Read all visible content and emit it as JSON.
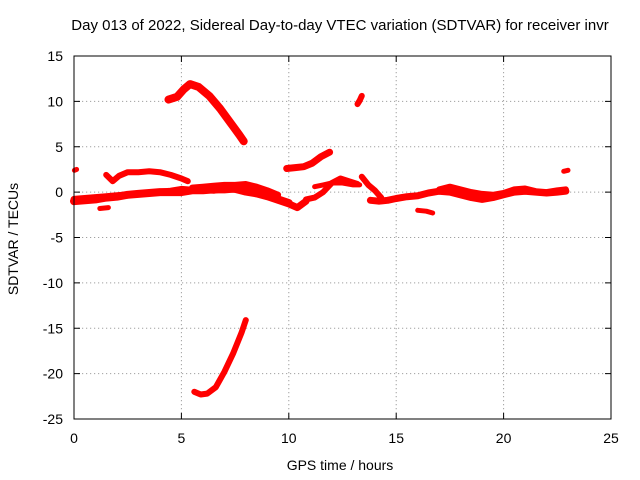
{
  "chart_data": {
    "type": "scatter",
    "title": "Day 013 of 2022, Sidereal Day-to-day VTEC variation (SDTVAR) for receiver invr",
    "xlabel": "GPS time / hours",
    "ylabel": "SDTVAR / TECUs",
    "xlim": [
      0,
      25
    ],
    "ylim": [
      -25,
      15
    ],
    "xticks": [
      0,
      5,
      10,
      15,
      20,
      25
    ],
    "yticks": [
      15,
      10,
      5,
      0,
      -5,
      -10,
      -15,
      -20,
      -25
    ],
    "grid": true,
    "legend": "none",
    "marker_color": "#ff0000",
    "series": [
      {
        "name": "arc-baseline-1",
        "width": 7,
        "x": [
          0.0,
          0.5,
          1.0,
          1.5,
          2.0,
          2.5,
          3.0,
          3.5,
          4.0,
          4.5,
          5.0,
          5.5,
          6.0,
          6.5,
          7.0,
          7.5,
          8.0,
          8.5,
          9.0,
          9.5,
          10.0,
          10.4,
          10.8
        ],
        "y": [
          -0.8,
          -0.7,
          -0.6,
          -0.5,
          -0.4,
          -0.3,
          -0.2,
          -0.1,
          0.0,
          0.1,
          0.3,
          0.2,
          0.3,
          0.2,
          0.4,
          0.3,
          0.0,
          -0.2,
          -0.5,
          -0.9,
          -1.3,
          -1.7,
          -1.0
        ]
      },
      {
        "name": "arc-baseline-2",
        "width": 8,
        "x": [
          0.0,
          0.5,
          1.0,
          1.5,
          2.0,
          2.5,
          3.0,
          3.5,
          4.0,
          4.5,
          5.0,
          5.5,
          6.0,
          6.5,
          7.0,
          7.5,
          8.0,
          8.5,
          9.0,
          9.5,
          10.0
        ],
        "y": [
          -1.0,
          -0.9,
          -0.8,
          -0.6,
          -0.5,
          -0.3,
          -0.2,
          -0.1,
          0.0,
          0.0,
          0.0,
          0.2,
          0.2,
          0.3,
          0.3,
          0.4,
          0.3,
          0.0,
          -0.3,
          -0.8,
          -1.2
        ]
      },
      {
        "name": "arc-upper-2",
        "width": 6,
        "x": [
          1.5,
          1.8,
          2.1,
          2.5,
          3.0,
          3.5,
          4.0,
          4.5,
          5.0,
          5.3
        ],
        "y": [
          1.9,
          1.2,
          1.8,
          2.2,
          2.2,
          2.3,
          2.2,
          1.9,
          1.5,
          1.2
        ]
      },
      {
        "name": "arc-5-8",
        "width": 6,
        "x": [
          5.5,
          6.0,
          6.5,
          7.0,
          7.5,
          8.0,
          8.5,
          9.0,
          9.5
        ],
        "y": [
          0.5,
          0.6,
          0.7,
          0.8,
          0.8,
          0.9,
          0.6,
          0.2,
          -0.3
        ]
      },
      {
        "name": "arc-10-12",
        "width": 6,
        "x": [
          10.8,
          11.2,
          11.6,
          12.0,
          12.4,
          12.8,
          13.2
        ],
        "y": [
          -0.8,
          -0.6,
          0.0,
          1.0,
          1.5,
          1.2,
          0.9
        ]
      },
      {
        "name": "arc-11-13",
        "width": 5,
        "x": [
          11.2,
          11.6,
          12.0,
          12.5,
          13.0,
          13.3
        ],
        "y": [
          0.6,
          0.8,
          1.0,
          1.0,
          0.8,
          0.8
        ]
      },
      {
        "name": "arc-evening",
        "width": 7,
        "x": [
          13.8,
          14.2,
          14.6,
          15.0,
          15.5,
          16.0,
          16.5,
          17.0,
          17.5,
          18.0,
          18.5,
          19.0,
          19.5,
          20.0,
          20.5,
          21.0,
          21.5,
          22.0,
          22.5,
          22.9
        ],
        "y": [
          -0.9,
          -1.0,
          -0.9,
          -0.7,
          -0.5,
          -0.4,
          -0.1,
          0.1,
          0.0,
          -0.3,
          -0.6,
          -0.8,
          -0.6,
          -0.3,
          0.0,
          0.1,
          0.0,
          -0.1,
          0.0,
          0.1
        ]
      },
      {
        "name": "arc-evening-b",
        "width": 6,
        "x": [
          17.0,
          17.5,
          18.0,
          18.5,
          19.0,
          19.5,
          20.0,
          20.5,
          21.0,
          21.5,
          22.0,
          22.5,
          22.9
        ],
        "y": [
          0.3,
          0.6,
          0.3,
          0.0,
          -0.2,
          -0.3,
          -0.1,
          0.3,
          0.4,
          0.1,
          0.0,
          0.2,
          0.3
        ]
      },
      {
        "name": "arc-13-hump",
        "width": 6,
        "x": [
          13.4,
          13.7,
          14.0,
          14.3
        ],
        "y": [
          1.7,
          0.8,
          0.2,
          -0.6
        ]
      },
      {
        "name": "arc-high-5",
        "width": 8,
        "x": [
          4.4,
          4.8,
          5.1,
          5.4,
          5.8,
          6.3,
          6.8,
          7.3,
          7.7,
          7.9
        ],
        "y": [
          10.2,
          10.5,
          11.3,
          11.9,
          11.6,
          10.6,
          9.2,
          7.6,
          6.3,
          5.6
        ]
      },
      {
        "name": "arc-low-6",
        "width": 6,
        "x": [
          5.6,
          5.9,
          6.2,
          6.6,
          7.0,
          7.4,
          7.8,
          8.0
        ],
        "y": [
          -22.0,
          -22.3,
          -22.2,
          -21.5,
          -19.8,
          -17.8,
          -15.5,
          -14.1
        ]
      },
      {
        "name": "arc-10-12-up",
        "width": 7,
        "x": [
          9.9,
          10.3,
          10.7,
          11.1,
          11.5,
          11.9
        ],
        "y": [
          2.6,
          2.7,
          2.8,
          3.2,
          3.9,
          4.4
        ]
      },
      {
        "name": "arc-13-spike",
        "width": 6,
        "x": [
          13.2,
          13.3,
          13.4
        ],
        "y": [
          9.7,
          10.1,
          10.6
        ]
      },
      {
        "name": "blip-0",
        "width": 5,
        "x": [
          0.02,
          0.12
        ],
        "y": [
          2.4,
          2.5
        ]
      },
      {
        "name": "blip-1",
        "width": 5,
        "x": [
          1.2,
          1.6
        ],
        "y": [
          -1.8,
          -1.7
        ]
      },
      {
        "name": "blip-16",
        "width": 5,
        "x": [
          16.0,
          16.4,
          16.7
        ],
        "y": [
          -2.0,
          -2.1,
          -2.3
        ]
      },
      {
        "name": "blip-22",
        "width": 5,
        "x": [
          22.8,
          23.0
        ],
        "y": [
          2.3,
          2.4
        ]
      }
    ]
  }
}
